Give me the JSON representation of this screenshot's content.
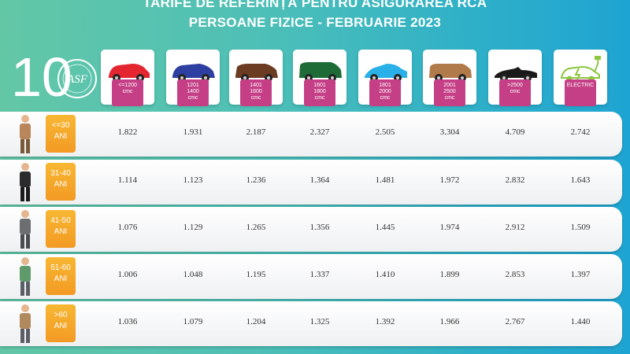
{
  "title": {
    "line1": "TARIFE DE REFERINȚĂ PENTRU ASIGURAREA RCA",
    "line2": "PERSOANE FIZICE - FEBRUARIE 2023"
  },
  "logo": {
    "mark": "10",
    "seal_text": "ROMÂNIA · AUTORITATEA DE SUPRAVEGHERE FINANCIARĂ"
  },
  "colors": {
    "label_magenta": "#c53f86",
    "badge_orange": "#f39a24"
  },
  "categories": [
    {
      "label": "<=1200\ncmc",
      "icon": "small-car-icon",
      "color": "#e3262f"
    },
    {
      "label": "1201\n1400\ncmc",
      "icon": "hatchback-icon",
      "color": "#2d3fa0"
    },
    {
      "label": "1401\n1600\ncmc",
      "icon": "suv-icon",
      "color": "#6b3b22"
    },
    {
      "label": "1601\n1800\ncmc",
      "icon": "minivan-icon",
      "color": "#1f6b38"
    },
    {
      "label": "1801\n2000\ncmc",
      "icon": "sedan-icon",
      "color": "#2ab0e8"
    },
    {
      "label": "2001\n2500\ncmc",
      "icon": "wagon-icon",
      "color": "#b07a4a"
    },
    {
      "label": ">2500\ncmc",
      "icon": "convertible-icon",
      "color": "#1a1a1a"
    },
    {
      "label": "ELECTRIC",
      "icon": "electric-car-icon",
      "color": "#8cc63f"
    }
  ],
  "rows": [
    {
      "age": "<=30\nANI",
      "values": [
        "1.822",
        "1.931",
        "2.187",
        "2.327",
        "2.505",
        "3.304",
        "4.709",
        "2.742"
      ]
    },
    {
      "age": "31-40\nANI",
      "values": [
        "1.114",
        "1.123",
        "1.236",
        "1.364",
        "1.481",
        "1.972",
        "2.832",
        "1.643"
      ]
    },
    {
      "age": "41-50\nANI",
      "values": [
        "1.076",
        "1.129",
        "1.265",
        "1.356",
        "1.445",
        "1.974",
        "2.912",
        "1.509"
      ]
    },
    {
      "age": "51-60\nANI",
      "values": [
        "1.006",
        "1.048",
        "1.195",
        "1.337",
        "1.410",
        "1.899",
        "2.853",
        "1.397"
      ]
    },
    {
      "age": ">60\nANI",
      "values": [
        "1.036",
        "1.079",
        "1.204",
        "1.325",
        "1.392",
        "1.966",
        "2.767",
        "1.440"
      ]
    }
  ]
}
